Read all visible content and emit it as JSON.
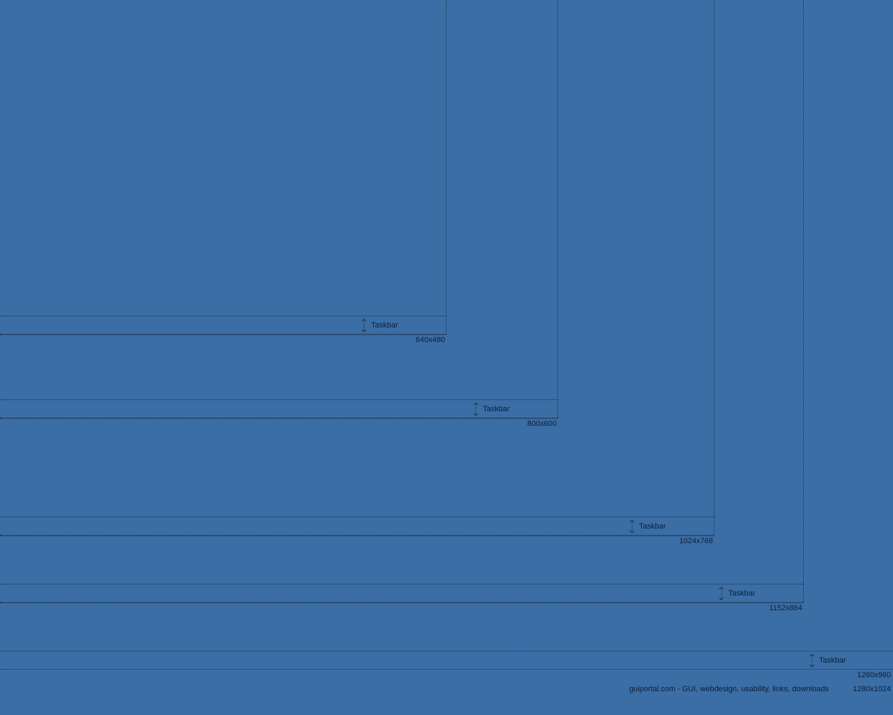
{
  "desktop": {
    "background_color": "#3b6ea5",
    "line_color": "#1c2f48",
    "text_color": "#0a1e38"
  },
  "resolutions": [
    {
      "label": "640x480",
      "taskbar_label": "Taskbar"
    },
    {
      "label": "800x600",
      "taskbar_label": "Taskbar"
    },
    {
      "label": "1024x768",
      "taskbar_label": "Taskbar"
    },
    {
      "label": "1152x864",
      "taskbar_label": "Taskbar"
    },
    {
      "label": "1280x960",
      "taskbar_label": "Taskbar"
    },
    {
      "label": "1280x1024"
    }
  ],
  "taskbar_icon": "resize-vertical-icon",
  "footer": {
    "credit": "guiportal.com - GUI, webdesign, usability, links, downloads"
  }
}
